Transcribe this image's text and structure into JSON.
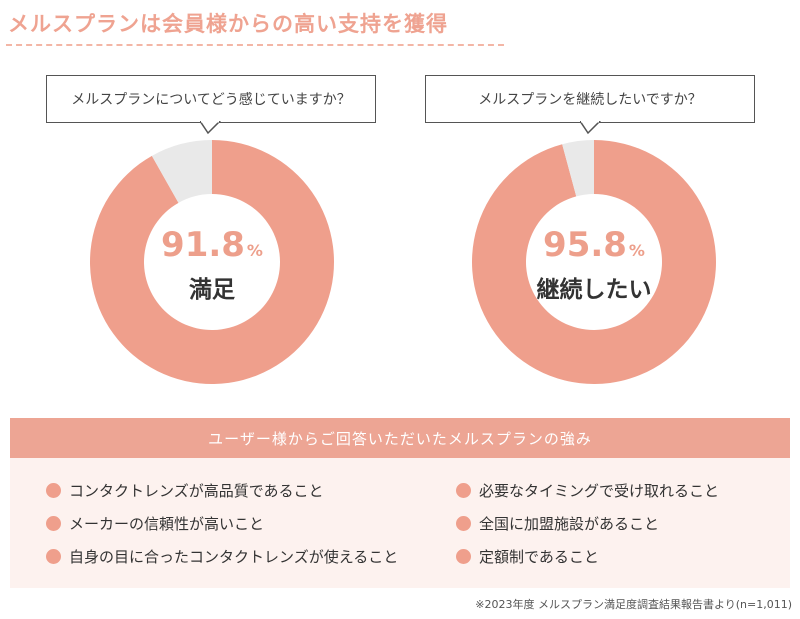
{
  "heading": "メルスプランは会員様からの高い支持を獲得",
  "colors": {
    "accent": "#ef9f8c",
    "rest": "#e9e9e9",
    "band": "#eda594",
    "panel": "#fdf2ef"
  },
  "chart_data": [
    {
      "type": "pie",
      "title": "メルスプランについてどう感じていますか？",
      "categories": [
        "満足",
        ""
      ],
      "values": [
        91.8,
        8.2
      ],
      "center_value": "91.8",
      "center_unit": "%",
      "center_label": "満足"
    },
    {
      "type": "pie",
      "title": "メルスプランを継続したいですか？",
      "categories": [
        "継続したい",
        ""
      ],
      "values": [
        95.8,
        4.2
      ],
      "center_value": "95.8",
      "center_unit": "%",
      "center_label": "継続したい"
    }
  ],
  "strengths": {
    "title": "ユーザー様からご回答いただいたメルスプランの強み",
    "items": [
      "コンタクトレンズが高品質であること",
      "メーカーの信頼性が高いこと",
      "自身の目に合ったコンタクトレンズが使えること",
      "必要なタイミングで受け取れること",
      "全国に加盟施設があること",
      "定額制であること"
    ]
  },
  "footnote": "※2023年度 メルスプラン満足度調査結果報告書より(n=1,011)"
}
